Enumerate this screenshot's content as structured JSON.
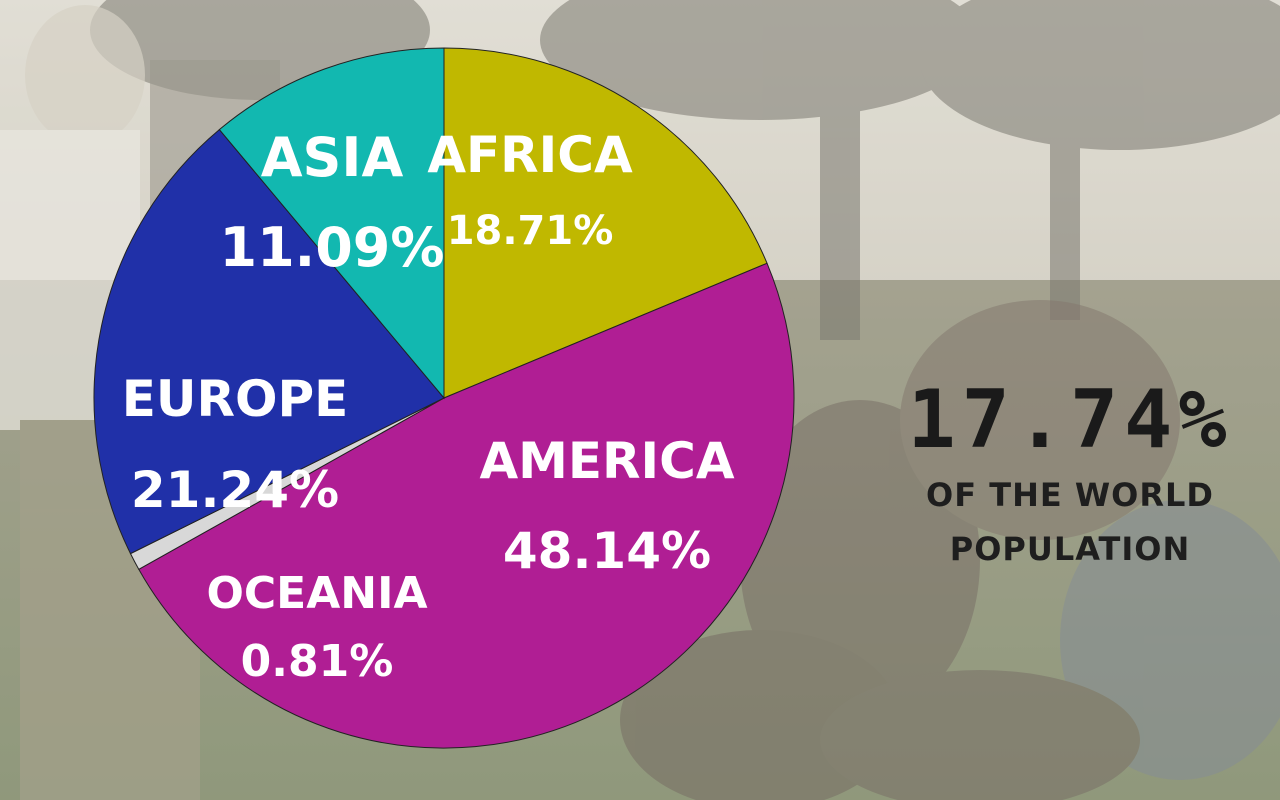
{
  "colors": {
    "background_overlay": "#f2efe6",
    "tree_dark": "#3d3b31",
    "ground_green": "#6c7f4a"
  },
  "chart_data": {
    "type": "pie",
    "slices": [
      {
        "label": "AFRICA",
        "value": 18.71,
        "display": "18.71%",
        "color": "#c0b800"
      },
      {
        "label": "AMERICA",
        "value": 48.14,
        "display": "48.14%",
        "color": "#b01e94"
      },
      {
        "label": "OCEANIA",
        "value": 0.81,
        "display": "0.81%",
        "color": "#d8d8d8"
      },
      {
        "label": "EUROPE",
        "value": 21.24,
        "display": "21.24%",
        "color": "#2030a8"
      },
      {
        "label": "ASIA",
        "value": 11.09,
        "display": "11.09%",
        "color": "#12b8b0"
      }
    ]
  },
  "stat": {
    "value": "17.74%",
    "line1": "OF THE WORLD",
    "line2": "POPULATION"
  }
}
